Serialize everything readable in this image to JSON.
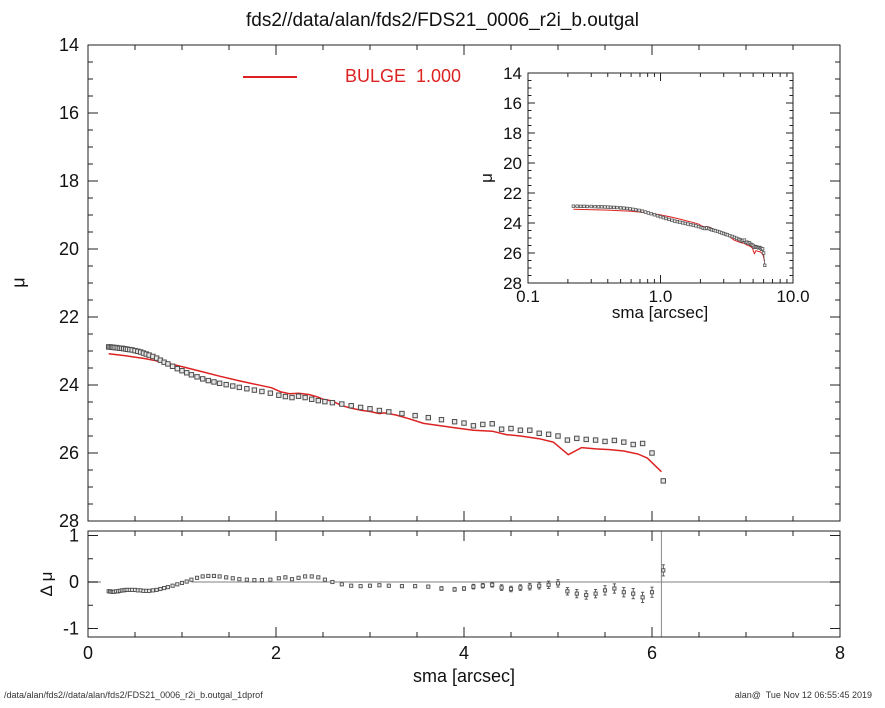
{
  "title": "fds2//data/alan/fds2/FDS21_0006_r2i_b.outgal",
  "legend": {
    "label": "BULGE  1.000",
    "color": "#dd2222"
  },
  "axes_labels": {
    "main_y": "μ",
    "residual_y": "Δ μ",
    "inset_y": "μ",
    "inset_x": "sma [arcsec]",
    "bottom_x": "sma [arcsec]"
  },
  "footer": {
    "left": "/data/alan/fds2//data/alan/fds2/FDS21_0006_r2i_b.outgal_1dprof",
    "right": "alan@  Tue Nov 12 06:55:45 2019"
  },
  "colors": {
    "model": "#dd2222",
    "axis": "#222222",
    "marker_fill": "#e8e8e8",
    "marker_edge": "#4d4d4d",
    "zero_line": "#aaaaaa",
    "vline": "#888888",
    "text": "#111111"
  },
  "chart_data": [
    {
      "id": "main",
      "type": "scatter",
      "xlabel": "",
      "ylabel": "μ",
      "xlim": [
        0,
        8
      ],
      "ylim": [
        28,
        14
      ],
      "x_major_ticks": [
        0,
        2,
        4,
        6,
        8
      ],
      "x_minor_step": 0.5,
      "y_tick_labels": [
        "14",
        "16",
        "18",
        "20",
        "22",
        "24",
        "26",
        "28"
      ],
      "y_minor_step": 0.5,
      "grid": false,
      "series": [
        {
          "name": "data",
          "type": "scatter",
          "marker": "square",
          "points": [
            [
              0.22,
              22.88
            ],
            [
              0.235,
              22.88
            ],
            [
              0.25,
              22.89
            ],
            [
              0.265,
              22.89
            ],
            [
              0.28,
              22.9
            ],
            [
              0.3,
              22.9
            ],
            [
              0.32,
              22.91
            ],
            [
              0.34,
              22.92
            ],
            [
              0.36,
              22.92
            ],
            [
              0.38,
              22.93
            ],
            [
              0.4,
              22.94
            ],
            [
              0.42,
              22.95
            ],
            [
              0.445,
              22.96
            ],
            [
              0.47,
              22.97
            ],
            [
              0.5,
              22.99
            ],
            [
              0.53,
              23.01
            ],
            [
              0.56,
              23.03
            ],
            [
              0.59,
              23.06
            ],
            [
              0.62,
              23.09
            ],
            [
              0.65,
              23.12
            ],
            [
              0.69,
              23.16
            ],
            [
              0.73,
              23.21
            ],
            [
              0.77,
              23.27
            ],
            [
              0.81,
              23.33
            ],
            [
              0.85,
              23.38
            ],
            [
              0.9,
              23.45
            ],
            [
              0.95,
              23.52
            ],
            [
              1.0,
              23.58
            ],
            [
              1.05,
              23.64
            ],
            [
              1.1,
              23.7
            ],
            [
              1.16,
              23.76
            ],
            [
              1.22,
              23.82
            ],
            [
              1.28,
              23.87
            ],
            [
              1.34,
              23.91
            ],
            [
              1.4,
              23.95
            ],
            [
              1.47,
              23.99
            ],
            [
              1.54,
              24.03
            ],
            [
              1.61,
              24.07
            ],
            [
              1.69,
              24.11
            ],
            [
              1.77,
              24.15
            ],
            [
              1.85,
              24.19
            ],
            [
              1.94,
              24.24
            ],
            [
              2.03,
              24.3
            ],
            [
              2.1,
              24.34
            ],
            [
              2.17,
              24.37
            ],
            [
              2.24,
              24.33
            ],
            [
              2.31,
              24.37
            ],
            [
              2.38,
              24.42
            ],
            [
              2.45,
              24.46
            ],
            [
              2.52,
              24.49
            ],
            [
              2.6,
              24.52
            ],
            [
              2.7,
              24.56
            ],
            [
              2.8,
              24.61
            ],
            [
              2.9,
              24.66
            ],
            [
              3.0,
              24.7
            ],
            [
              3.1,
              24.75
            ],
            [
              3.2,
              24.79
            ],
            [
              3.34,
              24.84
            ],
            [
              3.48,
              24.9
            ],
            [
              3.62,
              24.96
            ],
            [
              3.76,
              25.02
            ],
            [
              3.9,
              25.08
            ],
            [
              4.0,
              25.12
            ],
            [
              4.1,
              25.2
            ],
            [
              4.2,
              25.16
            ],
            [
              4.3,
              25.14
            ],
            [
              4.4,
              25.3
            ],
            [
              4.5,
              25.28
            ],
            [
              4.6,
              25.33
            ],
            [
              4.7,
              25.33
            ],
            [
              4.8,
              25.42
            ],
            [
              4.9,
              25.45
            ],
            [
              5.0,
              25.5
            ],
            [
              5.1,
              25.62
            ],
            [
              5.2,
              25.57
            ],
            [
              5.3,
              25.6
            ],
            [
              5.4,
              25.62
            ],
            [
              5.5,
              25.66
            ],
            [
              5.6,
              25.63
            ],
            [
              5.7,
              25.68
            ],
            [
              5.8,
              25.75
            ],
            [
              5.9,
              25.72
            ],
            [
              6.0,
              26.0
            ],
            [
              6.12,
              26.82
            ]
          ]
        },
        {
          "name": "BULGE 1.000 model",
          "type": "line",
          "color": "#dd2222",
          "points": [
            [
              0.22,
              23.08
            ],
            [
              0.4,
              23.14
            ],
            [
              0.6,
              23.22
            ],
            [
              0.8,
              23.33
            ],
            [
              1.0,
              23.46
            ],
            [
              1.2,
              23.6
            ],
            [
              1.4,
              23.74
            ],
            [
              1.6,
              23.87
            ],
            [
              1.8,
              23.99
            ],
            [
              1.95,
              24.08
            ],
            [
              2.05,
              24.2
            ],
            [
              2.15,
              24.26
            ],
            [
              2.24,
              24.24
            ],
            [
              2.35,
              24.28
            ],
            [
              2.45,
              24.36
            ],
            [
              2.5,
              24.42
            ],
            [
              2.6,
              24.47
            ],
            [
              2.7,
              24.61
            ],
            [
              2.8,
              24.68
            ],
            [
              2.9,
              24.74
            ],
            [
              3.0,
              24.78
            ],
            [
              3.1,
              24.84
            ],
            [
              3.15,
              24.82
            ],
            [
              3.27,
              24.88
            ],
            [
              3.4,
              24.98
            ],
            [
              3.57,
              25.13
            ],
            [
              3.75,
              25.2
            ],
            [
              3.9,
              25.26
            ],
            [
              4.1,
              25.33
            ],
            [
              4.3,
              25.36
            ],
            [
              4.45,
              25.46
            ],
            [
              4.6,
              25.5
            ],
            [
              4.8,
              25.58
            ],
            [
              4.95,
              25.68
            ],
            [
              5.11,
              26.05
            ],
            [
              5.25,
              25.84
            ],
            [
              5.4,
              25.88
            ],
            [
              5.55,
              25.9
            ],
            [
              5.7,
              25.94
            ],
            [
              5.85,
              26.03
            ],
            [
              5.95,
              26.15
            ],
            [
              6.1,
              26.55
            ]
          ]
        }
      ]
    },
    {
      "id": "inset",
      "type": "scatter",
      "xlabel": "sma [arcsec]",
      "ylabel": "μ",
      "xscale": "log",
      "xlim": [
        0.1,
        10
      ],
      "ylim": [
        28,
        14
      ],
      "x_tick_labels": [
        "0.1",
        "1.0",
        "10.0"
      ],
      "y_tick_labels": [
        "14",
        "16",
        "18",
        "20",
        "22",
        "24",
        "26",
        "28"
      ],
      "y_minor_step": 0.5,
      "grid": false,
      "series_from": "main"
    },
    {
      "id": "residual",
      "type": "scatter",
      "xlabel": "sma [arcsec]",
      "ylabel": "Δ μ",
      "xlim": [
        0,
        8
      ],
      "ylim": [
        -1.18,
        1.1
      ],
      "x_tick_labels": [
        "0",
        "2",
        "4",
        "6",
        "8"
      ],
      "x_minor_step": 0.5,
      "y_tick_labels": [
        "1",
        "0",
        "-1"
      ],
      "y_minor_step": 0.5,
      "zero_line": {
        "x_start": 1.1,
        "x_end": 8
      },
      "vline_x": 6.1,
      "grid": false,
      "series": [
        {
          "name": "residuals (data - model)",
          "type": "scatter-err",
          "marker": "square",
          "points": [
            [
              0.22,
              -0.2,
              0
            ],
            [
              0.235,
              -0.2,
              0
            ],
            [
              0.25,
              -0.21,
              0
            ],
            [
              0.265,
              -0.21,
              0
            ],
            [
              0.28,
              -0.21,
              0
            ],
            [
              0.3,
              -0.2,
              0
            ],
            [
              0.32,
              -0.2,
              0
            ],
            [
              0.34,
              -0.19,
              0
            ],
            [
              0.36,
              -0.18,
              0
            ],
            [
              0.38,
              -0.18,
              0
            ],
            [
              0.4,
              -0.17,
              0
            ],
            [
              0.42,
              -0.17,
              0
            ],
            [
              0.445,
              -0.17,
              0
            ],
            [
              0.47,
              -0.17,
              0
            ],
            [
              0.5,
              -0.17,
              0
            ],
            [
              0.53,
              -0.18,
              0
            ],
            [
              0.56,
              -0.18,
              0
            ],
            [
              0.59,
              -0.19,
              0
            ],
            [
              0.62,
              -0.19,
              0
            ],
            [
              0.65,
              -0.19,
              0
            ],
            [
              0.69,
              -0.18,
              0
            ],
            [
              0.73,
              -0.17,
              0
            ],
            [
              0.77,
              -0.15,
              0
            ],
            [
              0.81,
              -0.13,
              0
            ],
            [
              0.85,
              -0.11,
              0
            ],
            [
              0.9,
              -0.08,
              0
            ],
            [
              0.95,
              -0.05,
              0
            ],
            [
              1.0,
              -0.02,
              0
            ],
            [
              1.05,
              0.01,
              0
            ],
            [
              1.1,
              0.05,
              0
            ],
            [
              1.16,
              0.09,
              0
            ],
            [
              1.22,
              0.12,
              0
            ],
            [
              1.28,
              0.13,
              0
            ],
            [
              1.34,
              0.13,
              0
            ],
            [
              1.4,
              0.12,
              0
            ],
            [
              1.47,
              0.1,
              0
            ],
            [
              1.54,
              0.08,
              0
            ],
            [
              1.61,
              0.06,
              0
            ],
            [
              1.69,
              0.05,
              0
            ],
            [
              1.77,
              0.04,
              0
            ],
            [
              1.85,
              0.04,
              0
            ],
            [
              1.94,
              0.05,
              0
            ],
            [
              2.03,
              0.08,
              0
            ],
            [
              2.1,
              0.1,
              0
            ],
            [
              2.17,
              0.06,
              0
            ],
            [
              2.24,
              0.09,
              0
            ],
            [
              2.31,
              0.12,
              0
            ],
            [
              2.38,
              0.12,
              0
            ],
            [
              2.45,
              0.1,
              0
            ],
            [
              2.52,
              0.05,
              0
            ],
            [
              2.6,
              0.0,
              0
            ],
            [
              2.7,
              -0.05,
              0
            ],
            [
              2.8,
              -0.08,
              0
            ],
            [
              2.9,
              -0.09,
              0
            ],
            [
              3.0,
              -0.08,
              0
            ],
            [
              3.1,
              -0.07,
              0
            ],
            [
              3.2,
              -0.08,
              0
            ],
            [
              3.34,
              -0.09,
              0.03
            ],
            [
              3.48,
              -0.09,
              0.03
            ],
            [
              3.62,
              -0.1,
              0.03
            ],
            [
              3.76,
              -0.14,
              0.04
            ],
            [
              3.9,
              -0.16,
              0.04
            ],
            [
              4.0,
              -0.14,
              0.04
            ],
            [
              4.1,
              -0.1,
              0.05
            ],
            [
              4.2,
              -0.08,
              0.05
            ],
            [
              4.3,
              -0.06,
              0.05
            ],
            [
              4.4,
              -0.12,
              0.06
            ],
            [
              4.5,
              -0.15,
              0.06
            ],
            [
              4.6,
              -0.12,
              0.06
            ],
            [
              4.7,
              -0.1,
              0.07
            ],
            [
              4.8,
              -0.08,
              0.07
            ],
            [
              4.9,
              -0.06,
              0.08
            ],
            [
              5.0,
              -0.03,
              0.08
            ],
            [
              5.1,
              -0.2,
              0.08
            ],
            [
              5.2,
              -0.25,
              0.09
            ],
            [
              5.3,
              -0.28,
              0.09
            ],
            [
              5.4,
              -0.25,
              0.09
            ],
            [
              5.5,
              -0.18,
              0.1
            ],
            [
              5.6,
              -0.14,
              0.1
            ],
            [
              5.7,
              -0.22,
              0.1
            ],
            [
              5.8,
              -0.25,
              0.11
            ],
            [
              5.9,
              -0.33,
              0.11
            ],
            [
              6.0,
              -0.22,
              0.11
            ],
            [
              6.12,
              0.25,
              0.12
            ]
          ]
        }
      ]
    }
  ]
}
